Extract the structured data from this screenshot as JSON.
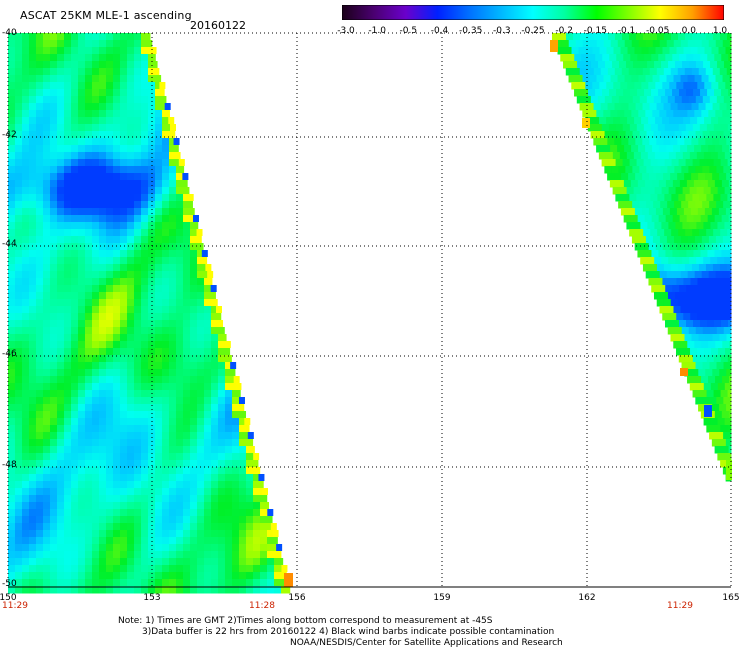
{
  "header": {
    "title": "ASCAT 25KM MLE-1 ascending",
    "date": "20160122"
  },
  "colorbar": {
    "labels": [
      "-3.0",
      "-1.0",
      "-0.5",
      "-0.4",
      "-0.35",
      "-0.3",
      "-0.25",
      "-0.2",
      "-0.15",
      "-0.1",
      "-0.05",
      "0.0",
      "1.0"
    ],
    "colors": [
      "#1a0018",
      "#4a0070",
      "#6a00cc",
      "#0020ff",
      "#0070ff",
      "#00b8ff",
      "#00ffff",
      "#00ffa0",
      "#00ff00",
      "#80ff00",
      "#ffff00",
      "#ffa000",
      "#ff0000"
    ]
  },
  "axes": {
    "lat_labels": [
      "-40",
      "-42",
      "-44",
      "-46",
      "-48",
      "-50"
    ],
    "lon_labels": [
      "150",
      "153",
      "156",
      "159",
      "162",
      "165"
    ],
    "time_labels": [
      "11:29",
      "11:28",
      "11:29"
    ]
  },
  "notes": {
    "line1": "Note: 1) Times are GMT 2)Times along bottom correspond to measurement at -45S",
    "line2": "3)Data buffer is 22 hrs from 20160122 4) Black wind barbs indicate possible contamination",
    "line3": "NOAA/NESDIS/Center for Satellite Applications and Research"
  }
}
